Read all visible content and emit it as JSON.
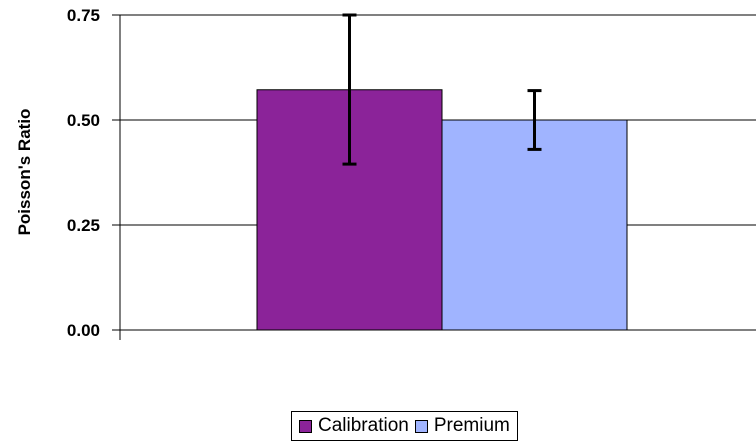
{
  "chart_data": {
    "type": "bar",
    "ylabel": "Poisson's Ratio",
    "xlabel": "",
    "ylim": [
      0,
      0.75
    ],
    "yticks": [
      "0.00",
      "0.25",
      "0.50",
      "0.75"
    ],
    "ytick_values": [
      0,
      0.25,
      0.5,
      0.75
    ],
    "grid": true,
    "legend_position": "bottom",
    "series": [
      {
        "name": "Calibration",
        "value": 0.572,
        "error_low": 0.395,
        "error_high": 0.75,
        "color": "#8B2399"
      },
      {
        "name": "Premium",
        "value": 0.5,
        "error_low": 0.43,
        "error_high": 0.57,
        "color": "#A0B4FF"
      }
    ]
  }
}
